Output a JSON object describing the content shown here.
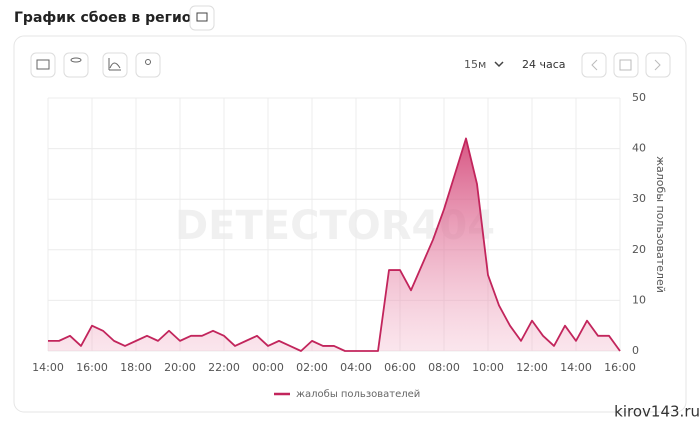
{
  "header": {
    "title": "График сбоев в регионе"
  },
  "toolbar": {
    "interval": "15м",
    "range": "24 часа"
  },
  "watermark": "DETECTOR404",
  "footer": {
    "site": "kirov143.ru"
  },
  "chart_data": {
    "type": "area",
    "y_label": "жалобы пользователей",
    "x": [
      "14:00",
      null,
      null,
      null,
      "16:00",
      null,
      null,
      null,
      "18:00",
      null,
      null,
      null,
      "20:00",
      null,
      null,
      null,
      "22:00",
      null,
      null,
      null,
      "00:00",
      null,
      null,
      null,
      "02:00",
      null,
      null,
      null,
      "04:00",
      null,
      null,
      null,
      "06:00",
      null,
      null,
      null,
      "08:00",
      null,
      null,
      null,
      "10:00",
      null,
      null,
      null,
      "12:00",
      null,
      null,
      null,
      "14:00",
      null,
      null,
      null,
      "16:00"
    ],
    "series": [
      {
        "name": "жалобы пользователей",
        "color": "#c2255c",
        "values": [
          2,
          2,
          3,
          1,
          5,
          4,
          2,
          1,
          2,
          3,
          2,
          4,
          2,
          3,
          3,
          4,
          3,
          1,
          2,
          3,
          1,
          2,
          1,
          0,
          2,
          1,
          1,
          0,
          0,
          0,
          0,
          16,
          16,
          12,
          17,
          22,
          28,
          35,
          42,
          33,
          15,
          9,
          5,
          2,
          6,
          3,
          1,
          5,
          2,
          6,
          3,
          3,
          0
        ]
      }
    ],
    "ylim": [
      0,
      50
    ],
    "yticks": [
      0,
      10,
      20,
      30,
      40,
      50
    ],
    "grid": true
  }
}
